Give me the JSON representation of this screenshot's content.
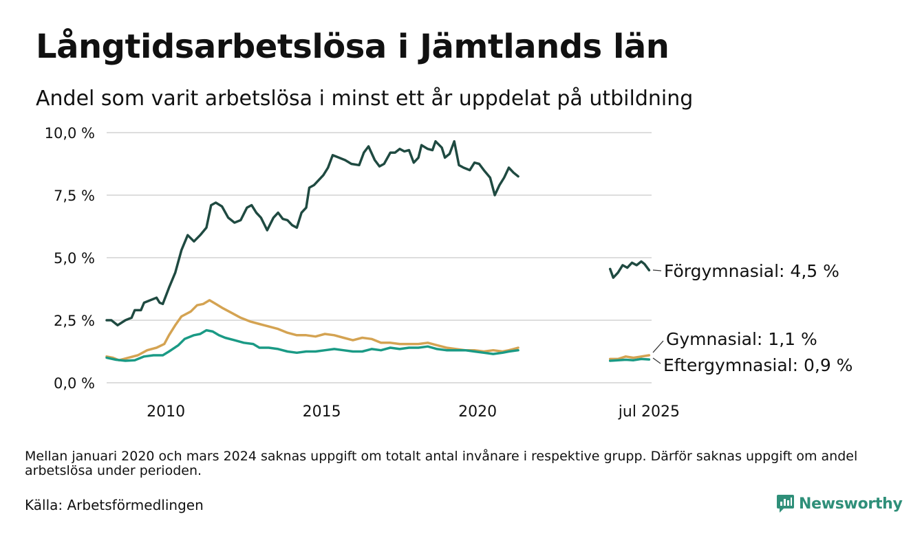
{
  "title": "Långtidsarbetslösa i Jämtlands län",
  "subtitle": "Andel som varit arbetslösa i minst ett år uppdelat på utbildning",
  "note": "Mellan januari 2020 och mars 2024 saknas uppgift om totalt antal invånare i respektive grupp. Därför saknas uppgift om andel arbetslösa under perioden.",
  "source": "Källa: Arbetsförmedlingen",
  "brand": {
    "name": "Newsworthy",
    "icon": "newsworthy-logo-icon",
    "color": "#2f8f79"
  },
  "colors": {
    "grid": "#dddddd",
    "forgymnasial": "#1f4a41",
    "gymnasial": "#d4a352",
    "eftergymnasial": "#1a9a85"
  },
  "chart_data": {
    "type": "line",
    "title": "Långtidsarbetslösa i Jämtlands län",
    "subtitle": "Andel som varit arbetslösa i minst ett år uppdelat på utbildning",
    "x_unit": "year (decimal)",
    "xlim": [
      2008.1,
      2025.58
    ],
    "ylim": [
      0,
      10
    ],
    "y_ticks": [
      {
        "value": 0,
        "label": "0,0 %"
      },
      {
        "value": 2.5,
        "label": "2,5 %"
      },
      {
        "value": 5,
        "label": "5,0 %"
      },
      {
        "value": 7.5,
        "label": "7,5 %"
      },
      {
        "value": 10,
        "label": "10,0 %"
      }
    ],
    "x_ticks": [
      {
        "value": 2010,
        "label": "2010"
      },
      {
        "value": 2015,
        "label": "2015"
      },
      {
        "value": 2020,
        "label": "2020"
      },
      {
        "value": 2025.5,
        "label": "jul 2025"
      }
    ],
    "grid": true,
    "gap": {
      "from": 2021.0,
      "to": 2024.25
    },
    "series": [
      {
        "name": "Förgymnasial",
        "end_label": "Förgymnasial: 4,5 %",
        "color": "#1f4a41",
        "segments": [
          [
            [
              2008.1,
              2.5
            ],
            [
              2008.25,
              2.5
            ],
            [
              2008.45,
              2.3
            ],
            [
              2008.7,
              2.5
            ],
            [
              2008.9,
              2.6
            ],
            [
              2009.0,
              2.9
            ],
            [
              2009.2,
              2.9
            ],
            [
              2009.3,
              3.2
            ],
            [
              2009.5,
              3.3
            ],
            [
              2009.7,
              3.4
            ],
            [
              2009.8,
              3.2
            ],
            [
              2009.9,
              3.15
            ],
            [
              2010.1,
              3.8
            ],
            [
              2010.3,
              4.4
            ],
            [
              2010.5,
              5.3
            ],
            [
              2010.7,
              5.9
            ],
            [
              2010.9,
              5.65
            ],
            [
              2011.1,
              5.9
            ],
            [
              2011.3,
              6.2
            ],
            [
              2011.45,
              7.1
            ],
            [
              2011.6,
              7.2
            ],
            [
              2011.8,
              7.05
            ],
            [
              2012.0,
              6.6
            ],
            [
              2012.2,
              6.4
            ],
            [
              2012.4,
              6.5
            ],
            [
              2012.6,
              7.0
            ],
            [
              2012.75,
              7.1
            ],
            [
              2012.9,
              6.8
            ],
            [
              2013.05,
              6.6
            ],
            [
              2013.25,
              6.1
            ],
            [
              2013.45,
              6.6
            ],
            [
              2013.6,
              6.8
            ],
            [
              2013.75,
              6.55
            ],
            [
              2013.9,
              6.5
            ],
            [
              2014.05,
              6.3
            ],
            [
              2014.2,
              6.2
            ],
            [
              2014.35,
              6.8
            ],
            [
              2014.5,
              7.0
            ],
            [
              2014.6,
              7.8
            ],
            [
              2014.75,
              7.9
            ],
            [
              2014.9,
              8.1
            ],
            [
              2015.05,
              8.3
            ],
            [
              2015.2,
              8.6
            ],
            [
              2015.35,
              9.1
            ],
            [
              2015.55,
              9.0
            ],
            [
              2015.75,
              8.9
            ],
            [
              2015.95,
              8.75
            ],
            [
              2016.2,
              8.7
            ],
            [
              2016.35,
              9.2
            ],
            [
              2016.5,
              9.45
            ],
            [
              2016.7,
              8.9
            ],
            [
              2016.85,
              8.65
            ],
            [
              2017.0,
              8.75
            ],
            [
              2017.2,
              9.2
            ],
            [
              2017.35,
              9.2
            ],
            [
              2017.5,
              9.35
            ],
            [
              2017.65,
              9.25
            ],
            [
              2017.8,
              9.3
            ],
            [
              2017.95,
              8.8
            ],
            [
              2018.1,
              9.0
            ],
            [
              2018.2,
              9.5
            ],
            [
              2018.4,
              9.35
            ],
            [
              2018.55,
              9.3
            ],
            [
              2018.65,
              9.65
            ],
            [
              2018.85,
              9.4
            ],
            [
              2018.95,
              9.0
            ],
            [
              2019.1,
              9.15
            ],
            [
              2019.25,
              9.65
            ],
            [
              2019.4,
              8.7
            ],
            [
              2019.55,
              8.6
            ],
            [
              2019.75,
              8.5
            ],
            [
              2019.9,
              8.8
            ],
            [
              2020.05,
              8.75
            ],
            [
              2020.2,
              8.5
            ],
            [
              2020.4,
              8.2
            ],
            [
              2020.55,
              7.5
            ],
            [
              2020.7,
              7.9
            ],
            [
              2020.85,
              8.2
            ],
            [
              2021.0,
              8.6
            ],
            [
              2021.15,
              8.4
            ],
            [
              2021.3,
              8.25
            ]
          ],
          [
            [
              2024.25,
              4.55
            ],
            [
              2024.35,
              4.2
            ],
            [
              2024.5,
              4.4
            ],
            [
              2024.65,
              4.7
            ],
            [
              2024.8,
              4.6
            ],
            [
              2024.95,
              4.8
            ],
            [
              2025.1,
              4.7
            ],
            [
              2025.25,
              4.85
            ],
            [
              2025.35,
              4.75
            ],
            [
              2025.5,
              4.5
            ]
          ]
        ]
      },
      {
        "name": "Gymnasial",
        "end_label": "Gymnasial: 1,1 %",
        "color": "#d4a352",
        "segments": [
          [
            [
              2008.1,
              1.05
            ],
            [
              2008.3,
              1.0
            ],
            [
              2008.5,
              0.9
            ],
            [
              2008.8,
              1.0
            ],
            [
              2009.1,
              1.1
            ],
            [
              2009.4,
              1.3
            ],
            [
              2009.7,
              1.4
            ],
            [
              2009.95,
              1.55
            ],
            [
              2010.1,
              1.9
            ],
            [
              2010.3,
              2.3
            ],
            [
              2010.5,
              2.65
            ],
            [
              2010.8,
              2.85
            ],
            [
              2011.0,
              3.1
            ],
            [
              2011.2,
              3.15
            ],
            [
              2011.4,
              3.3
            ],
            [
              2011.6,
              3.15
            ],
            [
              2011.8,
              3.0
            ],
            [
              2012.1,
              2.8
            ],
            [
              2012.4,
              2.6
            ],
            [
              2012.7,
              2.45
            ],
            [
              2013.0,
              2.35
            ],
            [
              2013.3,
              2.25
            ],
            [
              2013.6,
              2.15
            ],
            [
              2013.9,
              2.0
            ],
            [
              2014.2,
              1.9
            ],
            [
              2014.5,
              1.9
            ],
            [
              2014.8,
              1.85
            ],
            [
              2015.1,
              1.95
            ],
            [
              2015.4,
              1.9
            ],
            [
              2015.7,
              1.8
            ],
            [
              2016.0,
              1.7
            ],
            [
              2016.3,
              1.8
            ],
            [
              2016.6,
              1.75
            ],
            [
              2016.9,
              1.6
            ],
            [
              2017.2,
              1.6
            ],
            [
              2017.5,
              1.55
            ],
            [
              2017.8,
              1.55
            ],
            [
              2018.1,
              1.55
            ],
            [
              2018.4,
              1.6
            ],
            [
              2018.7,
              1.5
            ],
            [
              2019.0,
              1.4
            ],
            [
              2019.3,
              1.35
            ],
            [
              2019.6,
              1.3
            ],
            [
              2019.9,
              1.3
            ],
            [
              2020.2,
              1.25
            ],
            [
              2020.5,
              1.3
            ],
            [
              2020.8,
              1.25
            ],
            [
              2021.0,
              1.3
            ],
            [
              2021.15,
              1.35
            ],
            [
              2021.3,
              1.4
            ]
          ],
          [
            [
              2024.25,
              0.95
            ],
            [
              2024.5,
              0.95
            ],
            [
              2024.75,
              1.05
            ],
            [
              2025.0,
              1.0
            ],
            [
              2025.25,
              1.05
            ],
            [
              2025.5,
              1.1
            ]
          ]
        ]
      },
      {
        "name": "Eftergymnasial",
        "end_label": "Eftergymnasial: 0,9 %",
        "color": "#1a9a85",
        "segments": [
          [
            [
              2008.1,
              1.0
            ],
            [
              2008.4,
              0.92
            ],
            [
              2008.7,
              0.88
            ],
            [
              2009.0,
              0.9
            ],
            [
              2009.3,
              1.05
            ],
            [
              2009.6,
              1.1
            ],
            [
              2009.9,
              1.1
            ],
            [
              2010.1,
              1.25
            ],
            [
              2010.4,
              1.5
            ],
            [
              2010.6,
              1.75
            ],
            [
              2010.9,
              1.9
            ],
            [
              2011.1,
              1.95
            ],
            [
              2011.3,
              2.1
            ],
            [
              2011.5,
              2.05
            ],
            [
              2011.7,
              1.9
            ],
            [
              2011.9,
              1.8
            ],
            [
              2012.2,
              1.7
            ],
            [
              2012.5,
              1.6
            ],
            [
              2012.8,
              1.55
            ],
            [
              2013.0,
              1.4
            ],
            [
              2013.3,
              1.4
            ],
            [
              2013.6,
              1.35
            ],
            [
              2013.9,
              1.25
            ],
            [
              2014.2,
              1.2
            ],
            [
              2014.5,
              1.25
            ],
            [
              2014.8,
              1.25
            ],
            [
              2015.1,
              1.3
            ],
            [
              2015.4,
              1.35
            ],
            [
              2015.7,
              1.3
            ],
            [
              2016.0,
              1.25
            ],
            [
              2016.3,
              1.25
            ],
            [
              2016.6,
              1.35
            ],
            [
              2016.9,
              1.3
            ],
            [
              2017.2,
              1.4
            ],
            [
              2017.5,
              1.35
            ],
            [
              2017.8,
              1.4
            ],
            [
              2018.1,
              1.4
            ],
            [
              2018.4,
              1.45
            ],
            [
              2018.7,
              1.35
            ],
            [
              2019.0,
              1.3
            ],
            [
              2019.3,
              1.3
            ],
            [
              2019.6,
              1.3
            ],
            [
              2019.9,
              1.25
            ],
            [
              2020.2,
              1.2
            ],
            [
              2020.5,
              1.15
            ],
            [
              2020.8,
              1.2
            ],
            [
              2021.0,
              1.25
            ],
            [
              2021.3,
              1.3
            ]
          ],
          [
            [
              2024.25,
              0.88
            ],
            [
              2024.5,
              0.9
            ],
            [
              2024.75,
              0.92
            ],
            [
              2025.0,
              0.9
            ],
            [
              2025.25,
              0.95
            ],
            [
              2025.5,
              0.93
            ]
          ]
        ]
      }
    ]
  }
}
